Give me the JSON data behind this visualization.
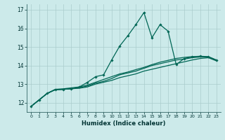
{
  "xlabel": "Humidex (Indice chaleur)",
  "bg_color": "#cceaea",
  "grid_color": "#aacccc",
  "line_color": "#006655",
  "xlim": [
    -0.5,
    23.5
  ],
  "ylim": [
    11.5,
    17.3
  ],
  "xticks": [
    0,
    1,
    2,
    3,
    4,
    5,
    6,
    7,
    8,
    9,
    10,
    11,
    12,
    13,
    14,
    15,
    16,
    17,
    18,
    19,
    20,
    21,
    22,
    23
  ],
  "yticks": [
    12,
    13,
    14,
    15,
    16,
    17
  ],
  "series": [
    {
      "x": [
        0,
        1,
        2,
        3,
        4,
        5,
        6,
        7,
        8,
        9,
        10,
        11,
        12,
        13,
        14,
        15,
        16,
        17,
        18,
        19,
        20,
        21,
        22,
        23
      ],
      "y": [
        11.8,
        12.15,
        12.5,
        12.7,
        12.72,
        12.75,
        12.78,
        12.85,
        13.0,
        13.1,
        13.2,
        13.35,
        13.45,
        13.55,
        13.7,
        13.8,
        13.9,
        14.0,
        14.1,
        14.2,
        14.3,
        14.38,
        14.42,
        14.25
      ],
      "marker": false,
      "lw": 0.9
    },
    {
      "x": [
        0,
        1,
        2,
        3,
        4,
        5,
        6,
        7,
        8,
        9,
        10,
        11,
        12,
        13,
        14,
        15,
        16,
        17,
        18,
        19,
        20,
        21,
        22,
        23
      ],
      "y": [
        11.8,
        12.15,
        12.5,
        12.7,
        12.72,
        12.75,
        12.8,
        12.9,
        13.05,
        13.15,
        13.3,
        13.5,
        13.6,
        13.7,
        13.85,
        14.0,
        14.1,
        14.2,
        14.3,
        14.35,
        14.42,
        14.46,
        14.46,
        14.28
      ],
      "marker": false,
      "lw": 0.9
    },
    {
      "x": [
        0,
        1,
        2,
        3,
        4,
        5,
        6,
        7,
        8,
        9,
        10,
        11,
        12,
        13,
        14,
        15,
        16,
        17,
        18,
        19,
        20,
        21,
        22,
        23
      ],
      "y": [
        11.8,
        12.15,
        12.5,
        12.72,
        12.75,
        12.8,
        12.85,
        12.95,
        13.1,
        13.25,
        13.4,
        13.55,
        13.65,
        13.78,
        13.9,
        14.05,
        14.18,
        14.28,
        14.38,
        14.44,
        14.48,
        14.5,
        14.48,
        14.3
      ],
      "marker": false,
      "lw": 0.9
    },
    {
      "x": [
        0,
        1,
        2,
        3,
        4,
        5,
        6,
        7,
        8,
        9,
        10,
        11,
        12,
        13,
        14,
        15,
        16,
        17,
        18,
        19,
        20,
        21,
        22,
        23
      ],
      "y": [
        11.8,
        12.15,
        12.5,
        12.7,
        12.72,
        12.75,
        12.85,
        13.1,
        13.4,
        13.5,
        14.3,
        15.05,
        15.6,
        16.2,
        16.85,
        15.5,
        16.2,
        15.85,
        14.05,
        14.38,
        14.46,
        14.5,
        14.46,
        14.28
      ],
      "marker": true,
      "lw": 0.9
    }
  ]
}
